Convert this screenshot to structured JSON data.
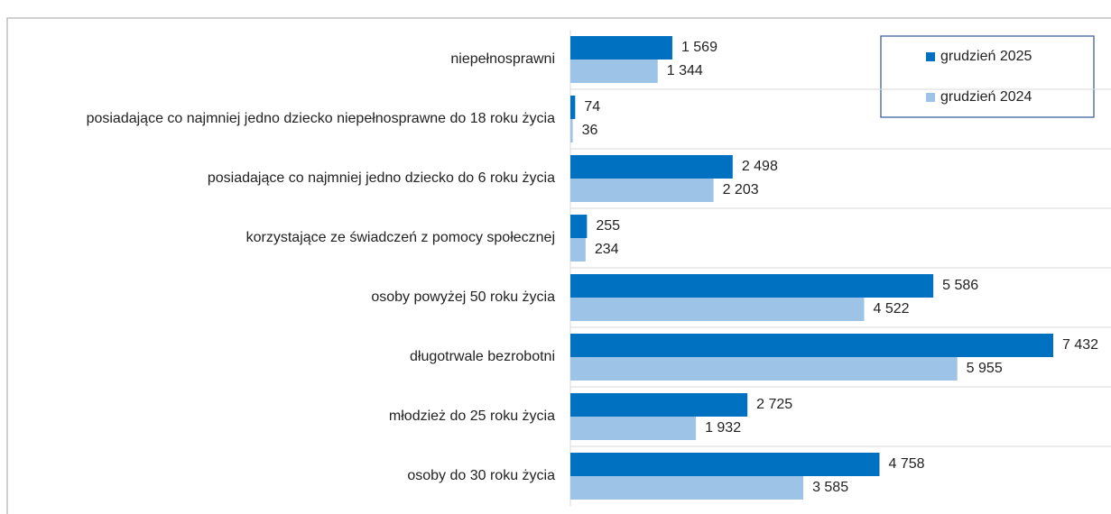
{
  "chart_data": {
    "type": "bar",
    "orientation": "horizontal",
    "categories": [
      "niepełnosprawni",
      "posiadające co najmniej jedno dziecko niepełnosprawne do 18 roku życia",
      "posiadające co najmniej jedno dziecko do 6 roku życia",
      "korzystające ze świadczeń z pomocy społecznej",
      "osoby powyżej 50 roku życia",
      "długotrwale bezrobotni",
      "młodzież do 25 roku życia",
      "osoby do 30 roku życia"
    ],
    "series": [
      {
        "name": "grudzień 2025",
        "color": "#0070c0",
        "values": [
          1569,
          74,
          2498,
          255,
          5586,
          7432,
          2725,
          4758
        ],
        "value_labels": [
          "1 569",
          "74",
          "2 498",
          "255",
          "5 586",
          "7 432",
          "2 725",
          "4 758"
        ]
      },
      {
        "name": "grudzień 2024",
        "color": "#9dc3e6",
        "values": [
          1344,
          36,
          2203,
          234,
          4522,
          5955,
          1932,
          3585
        ],
        "value_labels": [
          "1 344",
          "36",
          "2 203",
          "234",
          "4 522",
          "5 955",
          "1 932",
          "3 585"
        ]
      }
    ],
    "legend": "top-right"
  }
}
